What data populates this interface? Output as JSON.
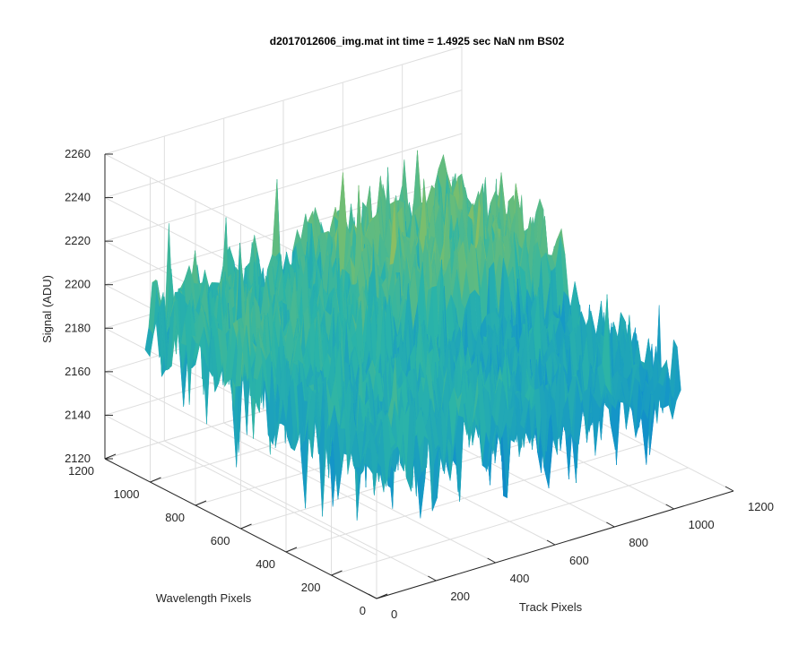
{
  "chart_data": {
    "type": "surface",
    "title": "d2017012606_img.mat int time = 1.4925 sec  NaN nm BS02",
    "xlabel": "Track Pixels",
    "ylabel": "Wavelength Pixels",
    "zlabel": "Signal (ADU)",
    "xlim": [
      0,
      1200
    ],
    "ylim": [
      0,
      1200
    ],
    "zlim": [
      2120,
      2260
    ],
    "x_ticks": [
      "0",
      "200",
      "400",
      "600",
      "800",
      "1000",
      "1200"
    ],
    "y_ticks": [
      "0",
      "200",
      "400",
      "600",
      "800",
      "1000",
      "1200"
    ],
    "z_ticks": [
      "2120",
      "2140",
      "2160",
      "2180",
      "2200",
      "2220",
      "2240",
      "2260"
    ],
    "grid": true,
    "colormap": "parula",
    "colors": {
      "low": "#0a72c6",
      "mid": "#2bb4a8",
      "high": "#e6c02a"
    },
    "surface": {
      "x_extent": [
        1,
        1024
      ],
      "y_extent": [
        1,
        1024
      ],
      "baseline": 2180,
      "quadrant_means": {
        "low_x_high_y": 2195,
        "high_x_high_y": 2205,
        "low_x_low_y": 2185,
        "high_x_low_y": 2178
      },
      "noise_range": [
        2140,
        2250
      ]
    }
  }
}
